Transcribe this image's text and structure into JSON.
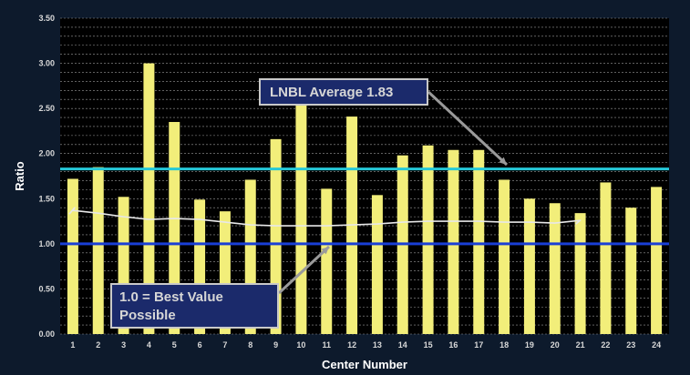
{
  "chart_data": {
    "type": "bar",
    "title": "",
    "xlabel": "Center Number",
    "ylabel": "Ratio",
    "ylim": [
      0,
      3.5
    ],
    "yticks": [
      "0.00",
      "0.50",
      "1.00",
      "1.50",
      "2.00",
      "2.50",
      "3.00",
      "3.50"
    ],
    "categories": [
      "1",
      "2",
      "3",
      "4",
      "5",
      "6",
      "7",
      "8",
      "9",
      "10",
      "11",
      "12",
      "13",
      "14",
      "15",
      "16",
      "17",
      "18",
      "19",
      "20",
      "21",
      "22",
      "23",
      "24"
    ],
    "values": [
      1.72,
      1.85,
      1.52,
      3.0,
      2.35,
      1.49,
      1.36,
      1.71,
      2.16,
      2.55,
      1.61,
      2.41,
      1.54,
      1.98,
      2.09,
      2.04,
      2.04,
      1.71,
      1.5,
      1.45,
      1.34,
      1.68,
      1.4,
      1.63
    ],
    "trend_values": [
      1.37,
      1.34,
      1.3,
      1.27,
      1.28,
      1.27,
      1.24,
      1.21,
      1.2,
      1.2,
      1.2,
      1.21,
      1.22,
      1.24,
      1.25,
      1.25,
      1.25,
      1.24,
      1.24,
      1.23,
      1.26
    ],
    "reference_lines": [
      {
        "value": 1.83,
        "color": "#26c8d8"
      },
      {
        "value": 1.0,
        "color": "#1a3fd6"
      }
    ],
    "bar_color": "#f2ee7a",
    "trend_color": "#e8e8e8",
    "grid": true,
    "grid_color": "#9a9a9a",
    "plot_background": "#000000"
  },
  "annotations": {
    "average": "LNBL Average 1.83",
    "best": "1.0 = Best Value Possible"
  }
}
